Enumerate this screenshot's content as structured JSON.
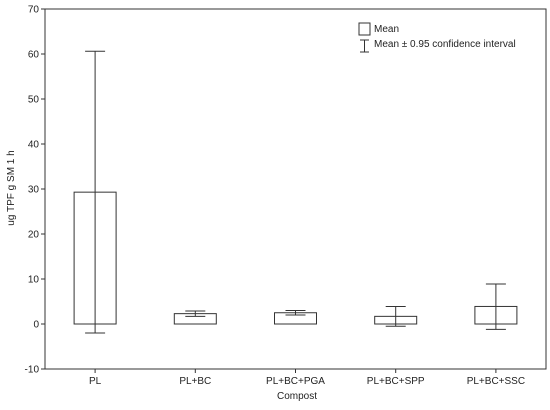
{
  "chart_data": {
    "type": "bar",
    "xlabel": "Compost",
    "ylabel": "ug TPF  g SM  1 h",
    "ylim": [
      -10,
      70
    ],
    "yticks": [
      -10,
      0,
      10,
      20,
      30,
      40,
      50,
      60,
      70
    ],
    "grid": false,
    "legend_position": "top-right",
    "categories": [
      "PL",
      "PL+BC",
      "PL+BC+PGA",
      "PL+BC+SPP",
      "PL+BC+SSC"
    ],
    "series": [
      {
        "name": "Mean",
        "values": [
          29.3,
          2.3,
          2.5,
          1.7,
          3.9
        ],
        "error_low": [
          -2.0,
          1.7,
          2.0,
          -0.5,
          -1.2
        ],
        "error_high": [
          60.6,
          2.9,
          3.0,
          3.9,
          8.9
        ]
      }
    ],
    "legend": {
      "mean_label": "Mean",
      "ci_label": "Mean ± 0.95 confidence interval"
    },
    "colors": {
      "bar_fill": "#ffffff",
      "stroke": "#333333"
    }
  }
}
